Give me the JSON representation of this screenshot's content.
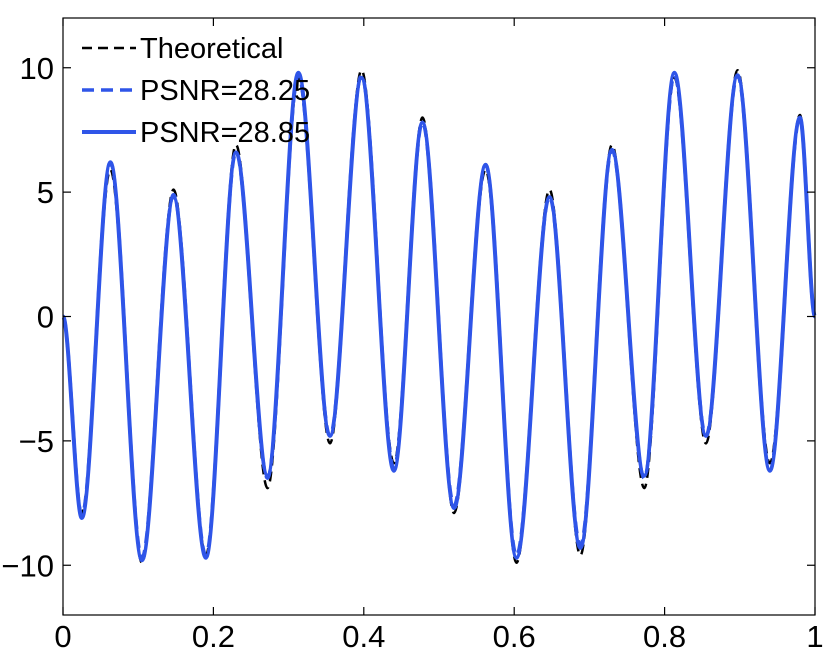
{
  "chart_data": {
    "type": "line",
    "title": "",
    "xlabel": "",
    "ylabel": "",
    "xlim": [
      0,
      1
    ],
    "ylim": [
      -12,
      12
    ],
    "grid": false,
    "legend_position": "top-left",
    "x_ticks": [
      0,
      0.2,
      0.4,
      0.6,
      0.8,
      1
    ],
    "x_tick_labels": [
      "0",
      "0.2",
      "0.4",
      "0.6",
      "0.8",
      "1"
    ],
    "y_ticks": [
      -10,
      -5,
      0,
      5,
      10
    ],
    "y_tick_labels": [
      "−10",
      "−5",
      "0",
      "5",
      "10"
    ],
    "x": [
      0,
      0.025,
      0.063,
      0.105,
      0.147,
      0.19,
      0.23,
      0.272,
      0.313,
      0.355,
      0.397,
      0.44,
      0.478,
      0.52,
      0.562,
      0.603,
      0.647,
      0.688,
      0.73,
      0.773,
      0.813,
      0.855,
      0.897,
      0.94,
      0.98,
      1
    ],
    "series": [
      {
        "name": "Theoretical",
        "color": "#000000",
        "line_style": "dashed",
        "values": [
          0,
          -7.9,
          5.9,
          -9.9,
          5.1,
          -9.6,
          6.9,
          -6.9,
          9.6,
          -5.1,
          9.9,
          -5.9,
          8.0,
          -7.9,
          5.9,
          -9.9,
          5.1,
          -9.6,
          6.9,
          -6.9,
          9.6,
          -5.1,
          9.9,
          -5.9,
          8.1,
          0
        ]
      },
      {
        "name": "PSNR=28.25",
        "color": "#2f55e8",
        "line_style": "dashed",
        "values": [
          0,
          -8.0,
          6.2,
          -9.7,
          4.9,
          -9.6,
          6.6,
          -6.5,
          9.7,
          -4.8,
          9.7,
          -6.1,
          7.8,
          -7.6,
          6.1,
          -9.6,
          4.8,
          -9.2,
          6.7,
          -6.5,
          9.7,
          -4.8,
          9.7,
          -6.2,
          8.0,
          0
        ]
      },
      {
        "name": "PSNR=28.85",
        "color": "#2f55e8",
        "line_style": "solid",
        "values": [
          0,
          -8.1,
          6.2,
          -9.8,
          4.8,
          -9.7,
          6.6,
          -6.4,
          9.8,
          -4.8,
          9.6,
          -6.2,
          7.8,
          -7.7,
          6.1,
          -9.7,
          4.8,
          -9.3,
          6.7,
          -6.4,
          9.8,
          -4.8,
          9.7,
          -6.2,
          8.0,
          0
        ]
      }
    ]
  }
}
